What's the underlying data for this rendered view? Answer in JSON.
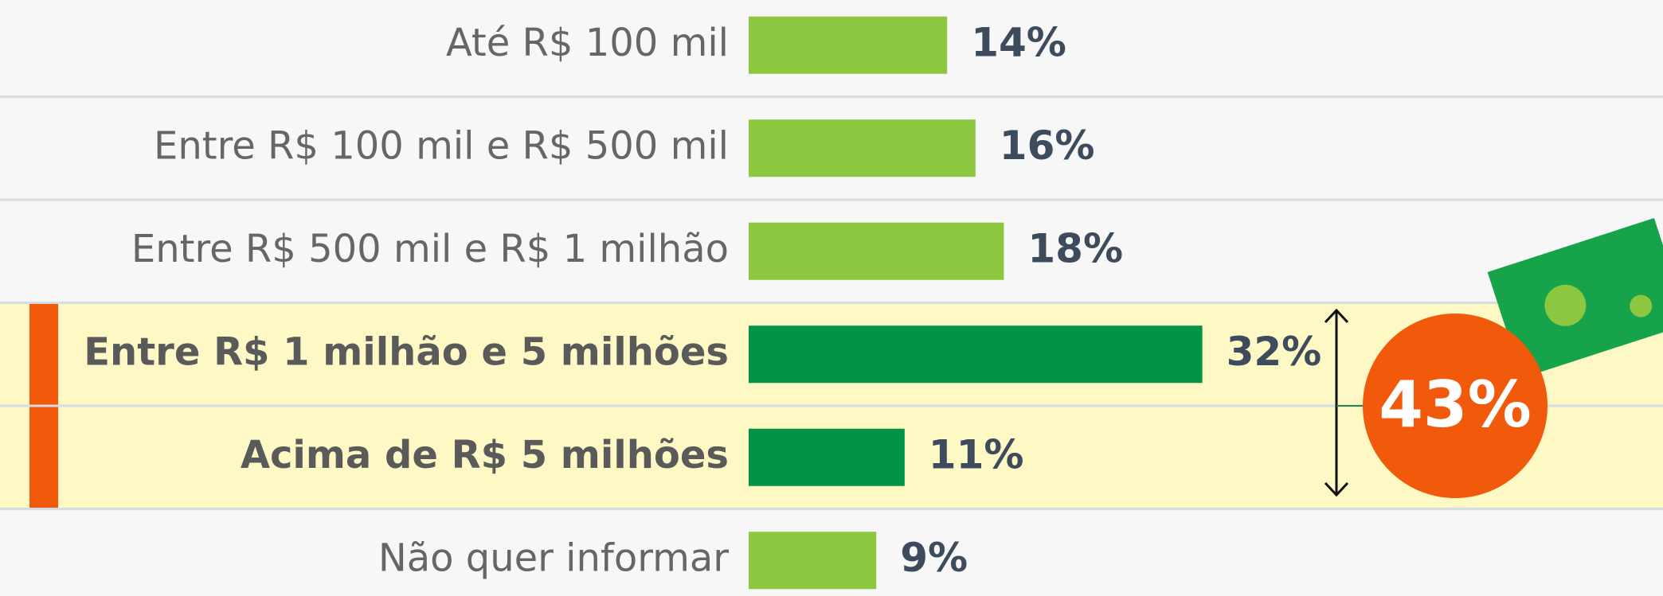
{
  "chart_data": {
    "type": "hbar",
    "categories": [
      "Até R$ 100 mil",
      "Entre R$ 100 mil e R$ 500 mil",
      "Entre R$ 500 mil e R$ 1 milhão",
      "Entre R$ 1 milhão e 5 milhões",
      "Acima de R$ 5 milhões",
      "Não quer informar"
    ],
    "values": [
      14,
      16,
      18,
      32,
      11,
      9
    ],
    "value_labels": [
      "14%",
      "16%",
      "18%",
      "32%",
      "11%",
      "9%"
    ],
    "colors": [
      "#8dc63f",
      "#8dc63f",
      "#8dc63f",
      "#009444",
      "#009444",
      "#8dc63f"
    ],
    "highlight": [
      3,
      4
    ],
    "annotation": "43%"
  }
}
